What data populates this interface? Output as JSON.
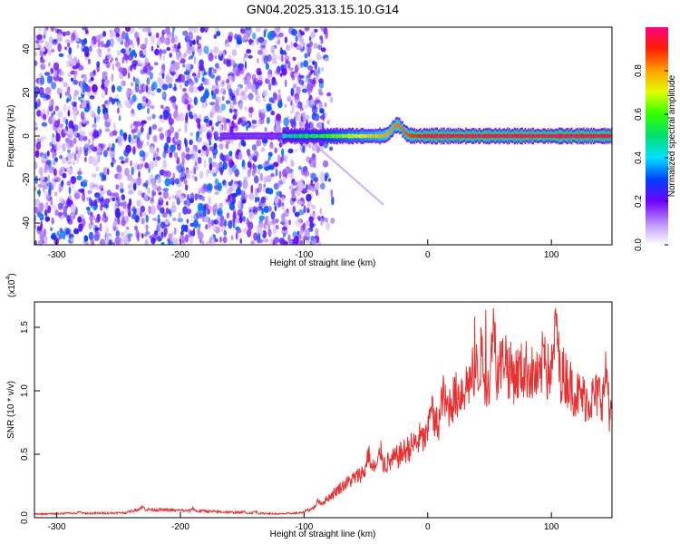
{
  "figure_title": "GN04.2025.313.15.10.G14",
  "chart_data": [
    {
      "type": "heatmap",
      "title": "GN04.2025.313.15.10.G14",
      "xlabel": "Height of straight line (km)",
      "ylabel": "Frequency (Hz)",
      "xlim": [
        -318,
        149
      ],
      "ylim": [
        -50,
        50
      ],
      "xticks": [
        -300,
        -200,
        -100,
        0,
        100
      ],
      "yticks": [
        -40,
        -20,
        0,
        20,
        40
      ],
      "xtick_labels": [
        "-300",
        "-200",
        "-100",
        "0",
        "100"
      ],
      "ytick_labels": [
        "-40",
        "-20",
        "0",
        "20",
        "40"
      ],
      "colorbar": {
        "label": "Normalized spectral amplitude",
        "range": [
          0,
          1
        ],
        "ticks": [
          0.0,
          0.2,
          0.4,
          0.6,
          0.8
        ],
        "tick_labels": [
          "0.0",
          "0.2",
          "0.4",
          "0.6",
          "0.8"
        ]
      },
      "noise_region_km": [
        -318,
        -85
      ],
      "noise_amplitude_range": [
        0.05,
        0.35
      ],
      "ridge": {
        "frequency_hz": 0,
        "onset_km": -118,
        "start_amplitude": 0.45,
        "peak_amplitude": 0.95,
        "bump": {
          "x_km": -25,
          "frequency_hz": 5
        }
      }
    },
    {
      "type": "line",
      "title": "",
      "xlabel": "Height of straight line (km)",
      "ylabel": "SNR (10 * v/v)",
      "y_multiplier": "(x10",
      "y_multiplier_exp": "4",
      "y_multiplier_close": ")",
      "xlim": [
        -318,
        149
      ],
      "ylim": [
        0,
        1.7
      ],
      "xticks": [
        -300,
        -200,
        -100,
        0,
        100
      ],
      "yticks": [
        0.0,
        0.5,
        1.0,
        1.5
      ],
      "xtick_labels": [
        "-300",
        "-200",
        "-100",
        "0",
        "100"
      ],
      "ytick_labels": [
        "0.0",
        "0.5",
        "1.0",
        "1.5"
      ],
      "line_color": "#e83030",
      "trend_km": [
        -318,
        -240,
        -235,
        -120,
        -100,
        -85,
        -70,
        -50,
        -30,
        -10,
        0,
        10,
        20,
        30,
        40,
        50,
        60,
        70,
        80,
        90,
        100,
        110,
        120,
        130,
        140,
        149
      ],
      "trend_snr": [
        0.03,
        0.04,
        0.07,
        0.03,
        0.04,
        0.12,
        0.25,
        0.38,
        0.45,
        0.6,
        0.65,
        0.8,
        0.95,
        1.05,
        1.2,
        1.1,
        1.25,
        1.15,
        1.2,
        1.1,
        1.2,
        1.15,
        1.0,
        0.95,
        1.0,
        0.8
      ],
      "noise_ratio": 0.45,
      "peak_snr": 1.65
    }
  ]
}
